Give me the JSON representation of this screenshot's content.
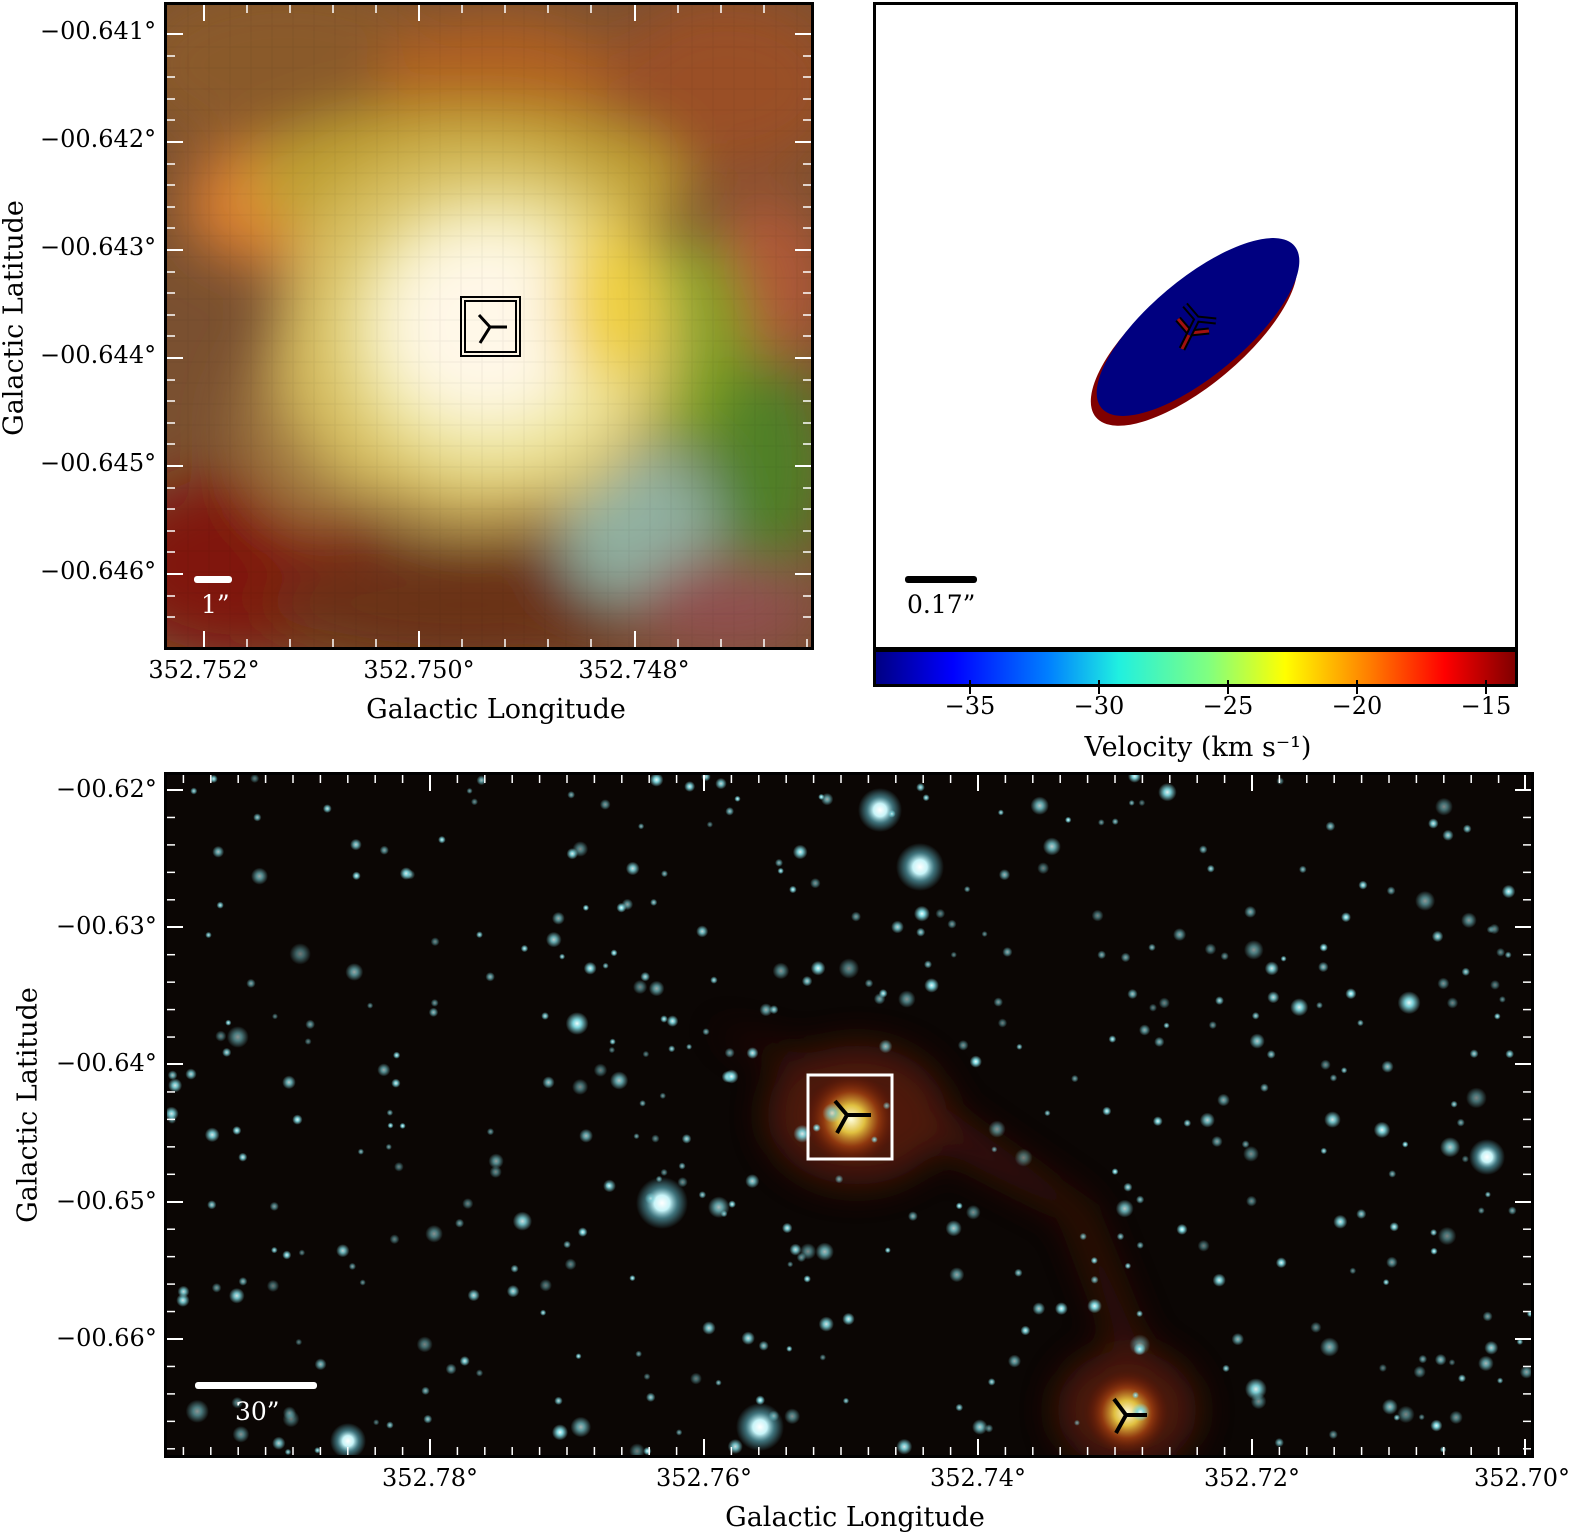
{
  "panel_top_left": {
    "y_ticks": [
      "−00.641°",
      "−00.642°",
      "−00.643°",
      "−00.644°",
      "−00.645°",
      "−00.646°"
    ],
    "x_ticks": [
      "352.752°",
      "352.750°",
      "352.748°"
    ],
    "ylabel": "Galactic Latitude",
    "xlabel": "Galactic Longitude",
    "scale_label": "1”"
  },
  "panel_top_right": {
    "scale_label": "0.17”",
    "colorbar_ticks": [
      "−35",
      "−30",
      "−25",
      "−20",
      "−15"
    ],
    "colorbar_label": "Velocity (km s⁻¹)",
    "colors": {
      "blue_ellipse": "#000080",
      "red_ellipse": "#800000"
    }
  },
  "panel_bottom": {
    "y_ticks": [
      "−00.62°",
      "−00.63°",
      "−00.64°",
      "−00.65°",
      "−00.66°"
    ],
    "x_ticks": [
      "352.78°",
      "352.76°",
      "352.74°",
      "352.72°",
      "352.70°"
    ],
    "ylabel": "Galactic Latitude",
    "xlabel": "Galactic Longitude",
    "scale_label": "30”"
  }
}
